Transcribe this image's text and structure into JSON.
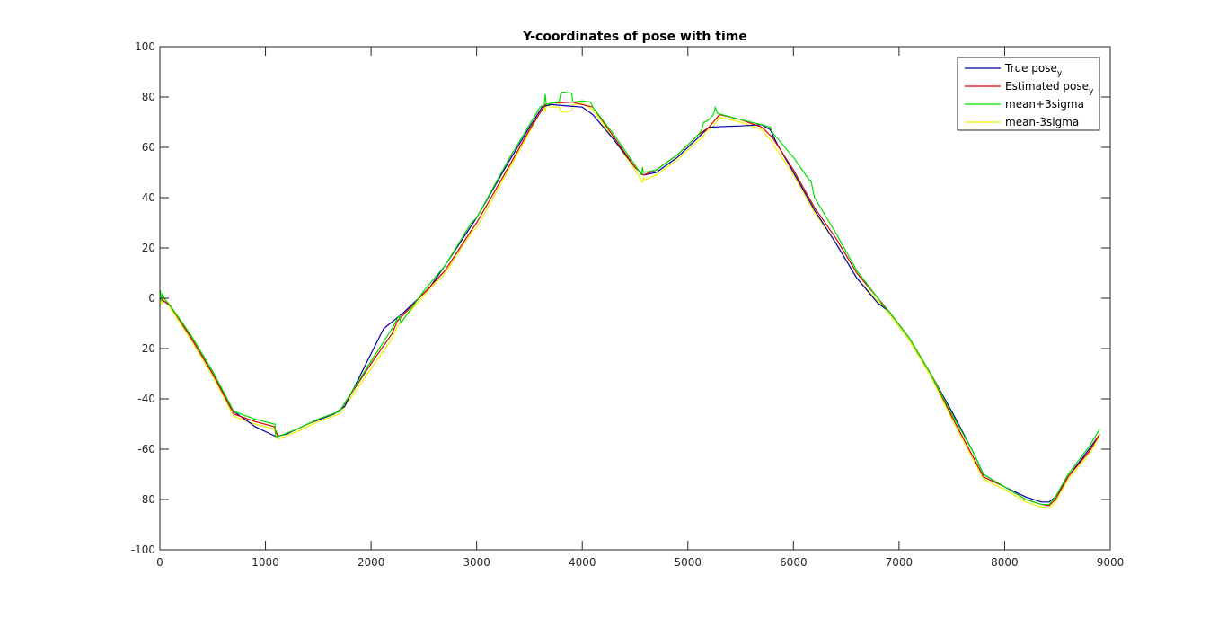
{
  "chart_data": {
    "type": "line",
    "title": "Y-coordinates of pose with time",
    "xlabel": "",
    "ylabel": "",
    "xlim": [
      0,
      9000
    ],
    "ylim": [
      -100,
      100
    ],
    "xticks": [
      0,
      1000,
      2000,
      3000,
      4000,
      5000,
      6000,
      7000,
      8000,
      9000
    ],
    "yticks": [
      -100,
      -80,
      -60,
      -40,
      -20,
      0,
      20,
      40,
      60,
      80,
      100
    ],
    "grid": false,
    "legend_position": "top-right",
    "legend": [
      {
        "label": "True pose",
        "subscript": "y",
        "color": "#0000a0"
      },
      {
        "label": "Estimated pose",
        "subscript": "y",
        "color": "#d40000"
      },
      {
        "label": "mean+3sigma",
        "subscript": "",
        "color": "#00e000"
      },
      {
        "label": "mean-3sigma",
        "subscript": "",
        "color": "#f0f000"
      }
    ],
    "series": [
      {
        "color": "#0000a0",
        "x": [
          0,
          100,
          300,
          500,
          700,
          900,
          1100,
          1200,
          1400,
          1650,
          1750,
          2000,
          2120,
          2300,
          2550,
          2700,
          3000,
          3300,
          3500,
          3620,
          3700,
          4000,
          4100,
          4300,
          4500,
          4580,
          4700,
          4900,
          5100,
          5200,
          5300,
          5500,
          5700,
          5780,
          5850,
          6000,
          6200,
          6400,
          6600,
          6800,
          6900,
          7100,
          7300,
          7500,
          7700,
          7800,
          8000,
          8200,
          8350,
          8420,
          8480,
          8600,
          8800,
          8900
        ],
        "y": [
          0,
          -3,
          -16,
          -30,
          -45,
          -51,
          -55,
          -54,
          -50,
          -46,
          -43,
          -22,
          -12,
          -6,
          4,
          13,
          32,
          54,
          68,
          76,
          77,
          76,
          73,
          63,
          52,
          49,
          50,
          56,
          64,
          68,
          68.2,
          68.5,
          69,
          67,
          61,
          50,
          35,
          22,
          8,
          -2,
          -5,
          -16,
          -30,
          -45,
          -61,
          -70,
          -75,
          -79,
          -81,
          -81,
          -79,
          -71,
          -60,
          -54
        ]
      },
      {
        "color": "#d40000",
        "x": [
          0,
          100,
          300,
          500,
          700,
          900,
          1080,
          1090,
          1120,
          1300,
          1500,
          1700,
          2000,
          2200,
          2250,
          2500,
          2700,
          2950,
          3000,
          3300,
          3500,
          3650,
          3700,
          3900,
          4100,
          4300,
          4500,
          4580,
          4700,
          4900,
          5100,
          5200,
          5250,
          5300,
          5500,
          5700,
          5800,
          6000,
          6200,
          6400,
          6600,
          6820,
          6900,
          7100,
          7300,
          7500,
          7700,
          7800,
          8000,
          8200,
          8350,
          8420,
          8480,
          8600,
          8800,
          8900
        ],
        "y": [
          0,
          -3,
          -16,
          -30,
          -46,
          -49,
          -51,
          -52,
          -55,
          -52,
          -48,
          -45,
          -26,
          -14,
          -9,
          2,
          11,
          27,
          30,
          52,
          67,
          77,
          77.5,
          78,
          76,
          64,
          52,
          49,
          51,
          57,
          65,
          68,
          70.5,
          73,
          71,
          68,
          64,
          51,
          36,
          24,
          10,
          -1,
          -5,
          -16,
          -30,
          -47,
          -63,
          -71,
          -75,
          -80,
          -82,
          -82.5,
          -80,
          -71,
          -61,
          -54
        ]
      },
      {
        "color": "#00e000",
        "x": [
          0,
          5,
          15,
          25,
          40,
          100,
          300,
          500,
          700,
          900,
          1080,
          1090,
          1095,
          1120,
          1300,
          1500,
          1700,
          2000,
          2200,
          2250,
          2270,
          2280,
          2500,
          2700,
          2950,
          3000,
          3300,
          3500,
          3600,
          3640,
          3650,
          3660,
          3700,
          3780,
          3800,
          3810,
          3900,
          3910,
          3920,
          4000,
          4080,
          4100,
          4300,
          4500,
          4560,
          4570,
          4580,
          4700,
          4900,
          5100,
          5130,
          5150,
          5160,
          5200,
          5240,
          5250,
          5260,
          5280,
          5500,
          5700,
          5780,
          5800,
          6000,
          6150,
          6160,
          6170,
          6200,
          6400,
          6600,
          6800,
          6820,
          6830,
          6900,
          7100,
          7300,
          7500,
          7700,
          7800,
          8000,
          8200,
          8350,
          8420,
          8480,
          8600,
          8800,
          8900
        ],
        "y": [
          1,
          3,
          -1,
          2,
          0,
          -3,
          -15,
          -29,
          -45,
          -48,
          -50,
          -50,
          -55,
          -55,
          -52,
          -48,
          -45,
          -25,
          -12,
          -8,
          -7,
          -10,
          3,
          13,
          30,
          32,
          55,
          69,
          76,
          77,
          81,
          77,
          77.5,
          78,
          82,
          82,
          81.5,
          78,
          78,
          78.5,
          78,
          76,
          65,
          53,
          49,
          52,
          50,
          51,
          57,
          65,
          67,
          70,
          70,
          71,
          73,
          74,
          76,
          73.5,
          71,
          69,
          68,
          66,
          56,
          47,
          47,
          46,
          40,
          26,
          11,
          0,
          -1,
          -2,
          -5,
          -16,
          -30,
          -46,
          -61,
          -70,
          -75,
          -80,
          -82,
          -82,
          -79,
          -70,
          -59,
          -52
        ]
      },
      {
        "color": "#f0f000",
        "x": [
          0,
          5,
          15,
          25,
          40,
          100,
          300,
          500,
          700,
          900,
          1080,
          1090,
          1120,
          1300,
          1500,
          1700,
          2000,
          2200,
          2250,
          2270,
          2500,
          2700,
          2950,
          3000,
          3300,
          3500,
          3600,
          3640,
          3650,
          3660,
          3700,
          3780,
          3800,
          3810,
          3900,
          3910,
          3920,
          4000,
          4100,
          4300,
          4500,
          4570,
          4580,
          4590,
          4700,
          4900,
          5100,
          5150,
          5160,
          5200,
          5250,
          5300,
          5500,
          5700,
          5800,
          5810,
          6000,
          6200,
          6400,
          6600,
          6820,
          6900,
          7100,
          7300,
          7500,
          7700,
          7800,
          8000,
          8200,
          8350,
          8420,
          8480,
          8600,
          8800,
          8900
        ],
        "y": [
          -1,
          -3,
          1,
          -2,
          0,
          -4,
          -17,
          -31,
          -47,
          -50,
          -52,
          -53,
          -56,
          -53,
          -49,
          -46,
          -28,
          -16,
          -11,
          -10,
          1,
          10,
          26,
          28,
          51,
          66,
          74,
          76,
          74,
          77,
          76,
          76,
          74,
          74,
          74.5,
          77,
          77,
          77.5,
          75,
          63,
          51,
          46,
          48,
          47,
          49,
          55,
          63,
          64,
          66,
          67,
          69,
          72,
          70,
          67,
          62,
          61,
          49,
          34,
          22,
          8,
          -2,
          -6,
          -17,
          -31,
          -48,
          -64,
          -72,
          -76,
          -81,
          -83,
          -83.5,
          -81,
          -72,
          -62,
          -55
        ]
      }
    ]
  }
}
